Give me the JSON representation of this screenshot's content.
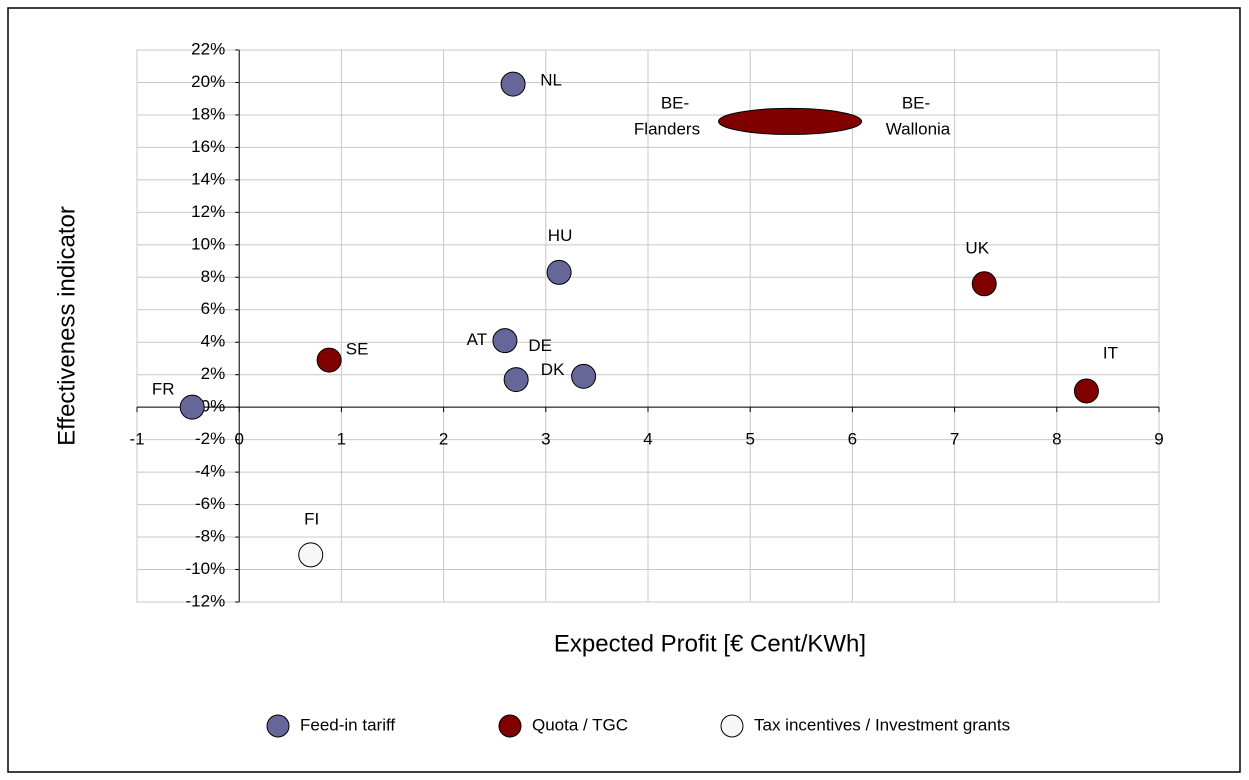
{
  "chart_data": {
    "type": "scatter",
    "x_label": "Expected Profit [€ Cent/KWh]",
    "y_label": "Effectiveness indicator",
    "xlim": [
      -1,
      9
    ],
    "xticks": [
      -1,
      0,
      1,
      2,
      3,
      4,
      5,
      6,
      7,
      8,
      9
    ],
    "ylim": [
      -12,
      22
    ],
    "yticks": [
      {
        "value": -12,
        "label": "-12%"
      },
      {
        "value": -10,
        "label": "-10%"
      },
      {
        "value": -8,
        "label": "-8%"
      },
      {
        "value": -6,
        "label": "-6%"
      },
      {
        "value": -4,
        "label": "-4%"
      },
      {
        "value": -2,
        "label": "-2%"
      },
      {
        "value": 0,
        "label": "0%"
      },
      {
        "value": 2,
        "label": "2%"
      },
      {
        "value": 4,
        "label": "4%"
      },
      {
        "value": 6,
        "label": "6%"
      },
      {
        "value": 8,
        "label": "8%"
      },
      {
        "value": 10,
        "label": "10%"
      },
      {
        "value": 12,
        "label": "12%"
      },
      {
        "value": 14,
        "label": "14%"
      },
      {
        "value": 16,
        "label": "16%"
      },
      {
        "value": 18,
        "label": "18%"
      },
      {
        "value": 20,
        "label": "20%"
      },
      {
        "value": 22,
        "label": "22%"
      }
    ],
    "grid": true,
    "series": [
      {
        "name": "Feed-in tariff",
        "color": "#666699",
        "labels": [
          "NL",
          "HU",
          "AT",
          "DE",
          "DK",
          "FR"
        ],
        "x": [
          2.68,
          3.13,
          2.6,
          2.71,
          3.37,
          -0.46
        ],
        "values": [
          19.9,
          8.3,
          4.1,
          1.7,
          1.9,
          0
        ]
      },
      {
        "name": "Quota / TGC",
        "color": "#800000",
        "labels": [
          "SE",
          "UK",
          "IT",
          null
        ],
        "x": [
          0.88,
          7.29,
          8.29,
          5.39
        ],
        "xerr": [
          null,
          null,
          null,
          0.7
        ],
        "values": [
          2.9,
          7.6,
          1.0,
          17.6
        ]
      },
      {
        "name": "Tax incentives / Investment grants",
        "color": "#f7f7f7",
        "labels": [
          "FI"
        ],
        "x": [
          0.7
        ],
        "values": [
          -9.1
        ]
      }
    ],
    "annotations": [
      [
        "BE-",
        "Flanders"
      ],
      [
        "BE-",
        "Wallonia"
      ]
    ]
  }
}
